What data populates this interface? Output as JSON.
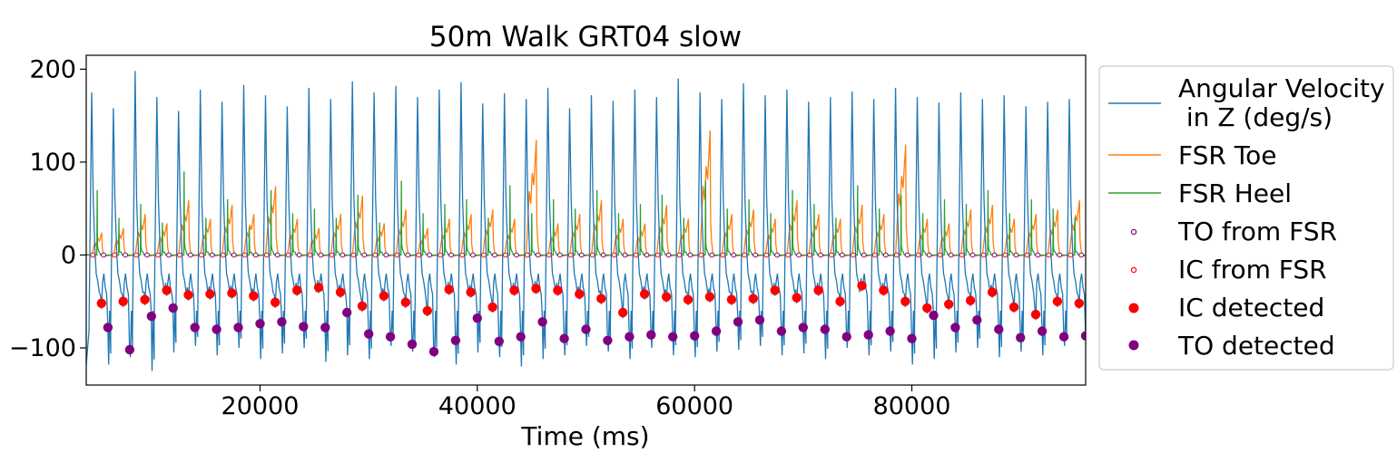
{
  "chart_data": {
    "type": "line",
    "title": "50m Walk GRT04 slow",
    "xlabel": "Time (ms)",
    "ylabel": "",
    "xlim": [
      4000,
      96000
    ],
    "ylim": [
      -140,
      215
    ],
    "xticks": [
      20000,
      40000,
      60000,
      80000
    ],
    "yticks": [
      -100,
      0,
      100,
      200
    ],
    "xtick_labels": [
      "20000",
      "40000",
      "60000",
      "80000"
    ],
    "ytick_labels": [
      "−100",
      "0",
      "100",
      "200"
    ],
    "grid": false,
    "legend_position": "outside-right",
    "stride": {
      "start": 4500,
      "period": 2000,
      "count": 46
    },
    "series": [
      {
        "name": "Angular Velocity\n in Z (deg/s)",
        "name_lines": [
          "Angular Velocity",
          " in Z (deg/s)"
        ],
        "kind": "line",
        "color": "#1f77b4",
        "peaks": [
          175,
          158,
          198,
          170,
          155,
          178,
          165,
          183,
          172,
          160,
          180,
          168,
          187,
          175,
          182,
          170,
          178,
          186,
          163,
          174,
          168,
          180,
          158,
          172,
          166,
          178,
          170,
          190,
          175,
          168,
          185,
          172,
          178,
          165,
          170,
          176,
          168,
          180,
          170,
          164,
          175,
          168,
          172,
          160,
          165,
          168
        ],
        "troughs": [
          -118,
          -110,
          -125,
          -105,
          -98,
          -108,
          -100,
          -112,
          -106,
          -100,
          -115,
          -108,
          -112,
          -98,
          -104,
          -110,
          -118,
          -105,
          -110,
          -120,
          -112,
          -108,
          -98,
          -104,
          -112,
          -100,
          -108,
          -110,
          -104,
          -102,
          -98,
          -108,
          -106,
          -112,
          -100,
          -108,
          -104,
          -118,
          -112,
          -105,
          -100,
          -110,
          -104,
          -108,
          -98,
          -102
        ]
      },
      {
        "name": "FSR Toe",
        "kind": "line",
        "color": "#ff7f0e",
        "peaks": [
          25,
          30,
          45,
          35,
          60,
          40,
          55,
          45,
          75,
          40,
          30,
          45,
          65,
          35,
          50,
          30,
          40,
          45,
          50,
          40,
          125,
          35,
          45,
          60,
          40,
          35,
          55,
          40,
          135,
          45,
          50,
          40,
          60,
          45,
          40,
          55,
          45,
          120,
          40,
          35,
          50,
          55,
          40,
          45,
          50,
          60
        ]
      },
      {
        "name": "FSR Heel",
        "kind": "line",
        "color": "#2ca02c",
        "peaks": [
          70,
          40,
          55,
          35,
          90,
          40,
          60,
          30,
          70,
          45,
          50,
          40,
          65,
          35,
          80,
          45,
          55,
          60,
          40,
          75,
          45,
          60,
          50,
          70,
          45,
          55,
          65,
          40,
          80,
          50,
          60,
          45,
          70,
          55,
          40,
          75,
          50,
          65,
          45,
          60,
          55,
          70,
          45,
          60,
          50,
          40
        ]
      },
      {
        "name": "TO from FSR",
        "kind": "open-marker",
        "color": "#800080",
        "offset": 1100,
        "y": 0
      },
      {
        "name": "IC from FSR",
        "kind": "open-marker",
        "color": "#ff0000",
        "offset": 100,
        "y": 0
      },
      {
        "name": "IC detected",
        "kind": "marker",
        "color": "#ff0000",
        "offset": 900,
        "values": [
          -52,
          -50,
          -48,
          -38,
          -43,
          -42,
          -41,
          -44,
          -51,
          -38,
          -35,
          -40,
          -55,
          -44,
          -51,
          -60,
          -37,
          -40,
          -56,
          -38,
          -36,
          -38,
          -42,
          -47,
          -62,
          -42,
          -45,
          -48,
          -45,
          -48,
          -47,
          -38,
          -46,
          -38,
          -50,
          -33,
          -38,
          -50,
          -57,
          -53,
          -49,
          -40,
          -56,
          -64,
          -50,
          -52
        ]
      },
      {
        "name": "TO detected",
        "kind": "marker",
        "color": "#800080",
        "offset": 1500,
        "values": [
          -78,
          -102,
          -66,
          -57,
          -78,
          -80,
          -78,
          -74,
          -72,
          -77,
          -78,
          -62,
          -85,
          -88,
          -96,
          -104,
          -92,
          -68,
          -93,
          -88,
          -72,
          -90,
          -80,
          -92,
          -88,
          -86,
          -88,
          -87,
          -82,
          -72,
          -70,
          -82,
          -78,
          -80,
          -88,
          -86,
          -82,
          -90,
          -65,
          -78,
          -70,
          -80,
          -89,
          -82,
          -88,
          -87
        ]
      }
    ]
  }
}
